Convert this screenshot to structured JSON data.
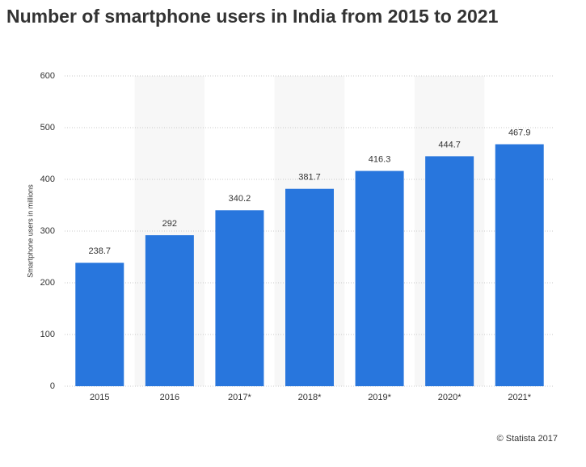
{
  "chart_data": {
    "type": "bar",
    "title": "Number of smartphone users in India from 2015 to 2021",
    "y_label": "Smartphone users in millions",
    "categories": [
      "2015",
      "2016",
      "2017*",
      "2018*",
      "2019*",
      "2020*",
      "2021*"
    ],
    "values": [
      238.7,
      292,
      340.2,
      381.7,
      416.3,
      444.7,
      467.9
    ],
    "color": "#2876dd",
    "ylim": [
      0,
      600
    ],
    "yticks": [
      0,
      100,
      200,
      300,
      400,
      500,
      600
    ],
    "grid": true,
    "source": "© Statista 2017"
  }
}
